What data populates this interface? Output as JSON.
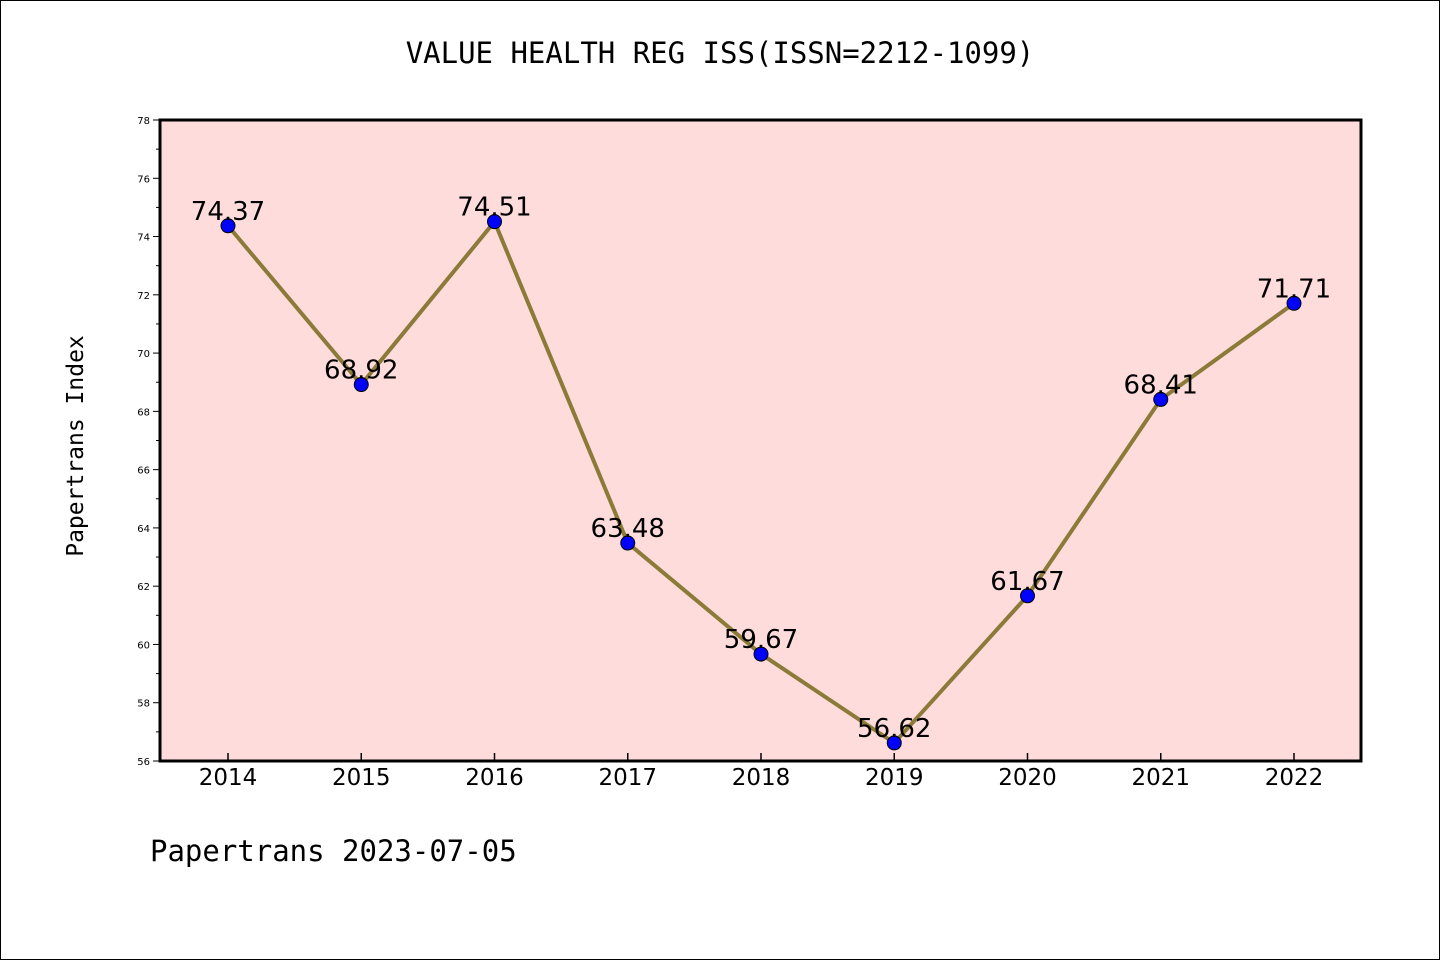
{
  "chart_data": {
    "type": "line",
    "title": "VALUE HEALTH REG ISS(ISSN=2212-1099)",
    "xlabel": "",
    "ylabel": "Papertrans Index",
    "x": [
      "2014",
      "2015",
      "2016",
      "2017",
      "2018",
      "2019",
      "2020",
      "2021",
      "2022"
    ],
    "series": [
      {
        "values": [
          74.37,
          68.92,
          74.51,
          63.48,
          59.67,
          56.62,
          61.67,
          68.41,
          71.71
        ],
        "labels": [
          "74.37",
          "68.92",
          "74.51",
          "63.48",
          "59.67",
          "56.62",
          "61.67",
          "68.41",
          "71.71"
        ]
      }
    ],
    "ylim": [
      56,
      78
    ],
    "yticks": [
      "56",
      "58",
      "60",
      "62",
      "64",
      "66",
      "68",
      "70",
      "72",
      "74",
      "76",
      "78"
    ],
    "grid": false,
    "colors": {
      "plot_background": "#ffdcdc",
      "line": "#8b7a38",
      "marker": "#0000ff"
    }
  },
  "footer": "Papertrans 2023-07-05"
}
